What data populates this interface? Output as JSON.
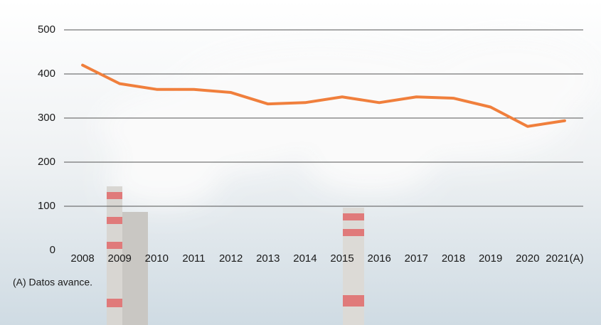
{
  "chart_data": {
    "type": "line",
    "categories": [
      "2008",
      "2009",
      "2010",
      "2011",
      "2012",
      "2013",
      "2014",
      "2015",
      "2016",
      "2017",
      "2018",
      "2019",
      "2020",
      "2021(A)"
    ],
    "values": [
      420,
      378,
      365,
      365,
      358,
      332,
      335,
      348,
      335,
      348,
      345,
      325,
      281,
      294
    ],
    "color": "#f07f3c",
    "ylim": [
      0,
      500
    ],
    "yticks": [
      0,
      100,
      200,
      300,
      400,
      500
    ],
    "grid": true,
    "note": "(A) Datos avance."
  }
}
